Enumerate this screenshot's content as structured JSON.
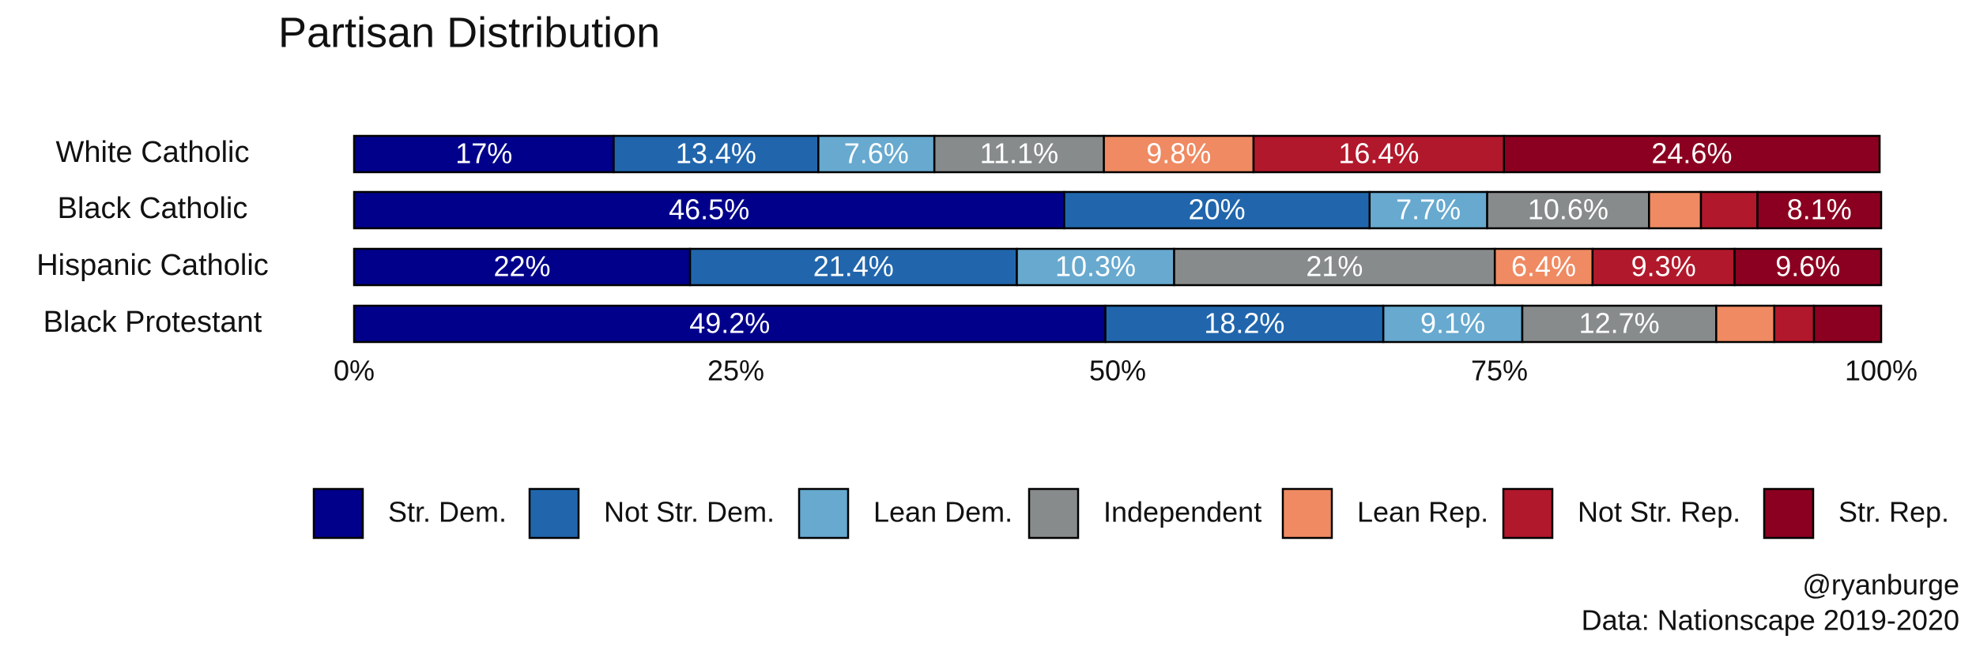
{
  "chart_data": {
    "type": "stacked-bar-horizontal",
    "title": "Partisan Distribution",
    "categories": [
      "White Catholic",
      "Black Catholic",
      "Hispanic Catholic",
      "Black Protestant"
    ],
    "series": [
      {
        "name": "Str. Dem.",
        "color": "#00008b",
        "values": [
          17,
          46.5,
          22,
          49.2
        ],
        "value_labels": [
          "17%",
          "46.5%",
          "22%",
          "49.2%"
        ]
      },
      {
        "name": "Not Str. Dem.",
        "color": "#2166ac",
        "values": [
          13.4,
          20,
          21.4,
          18.2
        ],
        "value_labels": [
          "13.4%",
          "20%",
          "21.4%",
          "18.2%"
        ]
      },
      {
        "name": "Lean Dem.",
        "color": "#67a9cf",
        "values": [
          7.6,
          7.7,
          10.3,
          9.1
        ],
        "value_labels": [
          "7.6%",
          "7.7%",
          "10.3%",
          "9.1%"
        ]
      },
      {
        "name": "Independent",
        "color": "#878b8b",
        "values": [
          11.1,
          10.6,
          21,
          12.7
        ],
        "value_labels": [
          "11.1%",
          "10.6%",
          "21%",
          "12.7%"
        ]
      },
      {
        "name": "Lean Rep.",
        "color": "#ef8a62",
        "values": [
          9.8,
          3.4,
          6.4,
          3.8
        ],
        "value_labels": [
          "9.8%",
          null,
          "6.4%",
          null
        ]
      },
      {
        "name": "Not Str. Rep.",
        "color": "#b2182b",
        "values": [
          16.4,
          3.7,
          9.3,
          2.6
        ],
        "value_labels": [
          "16.4%",
          null,
          "9.3%",
          null
        ]
      },
      {
        "name": "Str. Rep.",
        "color": "#8b0020",
        "values": [
          24.6,
          8.1,
          9.6,
          4.4
        ],
        "value_labels": [
          "24.6%",
          "8.1%",
          "9.6%",
          null
        ]
      }
    ],
    "xlim": [
      0,
      100
    ],
    "xticks": [
      {
        "value": 0,
        "label": "0%"
      },
      {
        "value": 25,
        "label": "25%"
      },
      {
        "value": 50,
        "label": "50%"
      },
      {
        "value": 75,
        "label": "75%"
      },
      {
        "value": 100,
        "label": "100%"
      }
    ],
    "legend": "bottom",
    "credit": "@ryanburge",
    "source": "Data: Nationscape 2019-2020"
  }
}
